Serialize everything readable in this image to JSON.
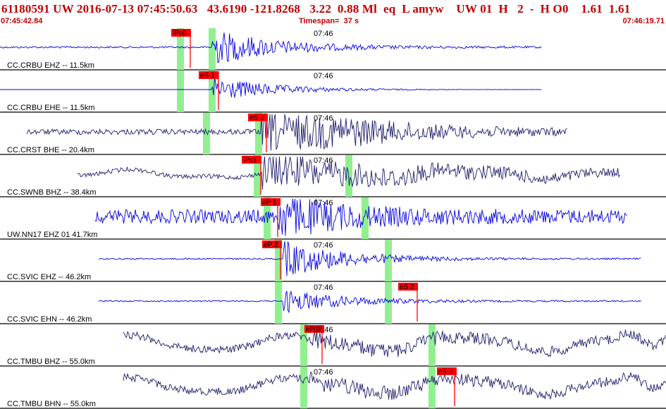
{
  "header": {
    "title": "61180591 UW 2016-07-13 07:45:50.63   43.6190 -121.8268   3.22  0.88 Ml  eq  L amyw    UW 01  H   2  -  H O0    1.61  1.61",
    "start_time": "07:45:42.84",
    "timespan": "Timespan=  37 s",
    "end_time": "07:46:19.71"
  },
  "colors": {
    "trace_blue": "#0000e0",
    "trace_navy": "#1c1c6e",
    "pick_red": "#ff0000",
    "window_green": "#90f090",
    "header_red": "#c00000"
  },
  "panels": [
    {
      "label": "CC.CRBU EHZ -- 11.5km",
      "time_label": "07:46",
      "color": "#0000e0",
      "pick": "iPc0"
    },
    {
      "label": "CC.CRBU EHE -- 11.5km",
      "time_label": "07:46",
      "color": "#0000e0",
      "pick": "eS 1"
    },
    {
      "label": "CC.CRST BHE -- 20.4km",
      "time_label": "07:46",
      "color": "#1c1c6e",
      "pick": "eS 2"
    },
    {
      "label": "CC.SWNB BHZ -- 38.4km",
      "time_label": "07:46",
      "color": "#1c1c6e",
      "pick": "iPc1"
    },
    {
      "label": "UW.NN17 EHZ 01 41.7km",
      "time_label": "07:46",
      "color": "#0000e0",
      "pick": "eP 1"
    },
    {
      "label": "CC.SVIC EHZ -- 46.2km",
      "time_label": "07:46",
      "color": "#0000e0",
      "pick": "eP 2"
    },
    {
      "label": "CC.SVIC EHN -- 46.2km",
      "time_label": "07:46",
      "color": "#0000e0",
      "pick": "eS 2"
    },
    {
      "label": "CC.TMBU BHZ -- 55.0km",
      "time_label": "07:46",
      "color": "#1c1c6e",
      "pick": "eP 2"
    },
    {
      "label": "CC.TMBU BHN -- 55.0km",
      "time_label": "07:46",
      "color": "#1c1c6e",
      "pick": "eS 2"
    }
  ]
}
